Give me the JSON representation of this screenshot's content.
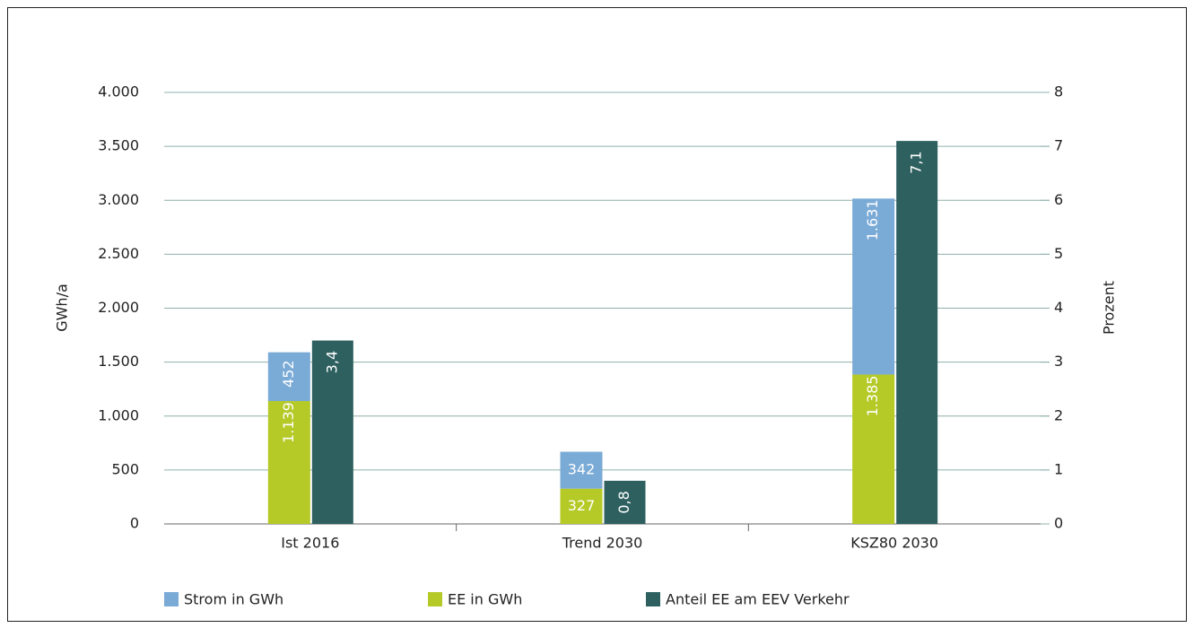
{
  "chart_data": {
    "type": "bar",
    "categories": [
      "Ist 2016",
      "Trend 2030",
      "KSZ80 2030"
    ],
    "series": [
      {
        "name": "Strom in GWh",
        "color": "#7aaad6",
        "values": [
          452,
          342,
          1631
        ],
        "value_labels": [
          "452",
          "342",
          "1.631"
        ]
      },
      {
        "name": "EE in GWh",
        "color": "#b5c927",
        "values": [
          1139,
          327,
          1385
        ],
        "value_labels": [
          "1.139",
          "327",
          "1.385"
        ]
      },
      {
        "name": "Anteil EE am EEV Verkehr",
        "color": "#2e6060",
        "axis": "y2",
        "values": [
          3.4,
          0.8,
          7.1
        ],
        "value_labels": [
          "3,4",
          "0,8",
          "7,1"
        ]
      }
    ],
    "ylabel": "GWh/a",
    "y2label": "Prozent",
    "ylim": [
      0,
      4000
    ],
    "yticks": [
      0,
      500,
      {
        "value": 1000,
        "label": "1.000"
      },
      {
        "value": 1500,
        "label": "1.500"
      },
      {
        "value": 2000,
        "label": "2.000"
      },
      {
        "value": 2500,
        "label": "2.500"
      },
      {
        "value": 3000,
        "label": "3.000"
      },
      {
        "value": 3500,
        "label": "3.500"
      },
      {
        "value": 4000,
        "label": "4.000"
      }
    ],
    "y2lim": [
      0,
      8
    ],
    "y2ticks": [
      0,
      1,
      2,
      3,
      4,
      5,
      6,
      7,
      8
    ],
    "grid": true,
    "legend": "bottom"
  }
}
